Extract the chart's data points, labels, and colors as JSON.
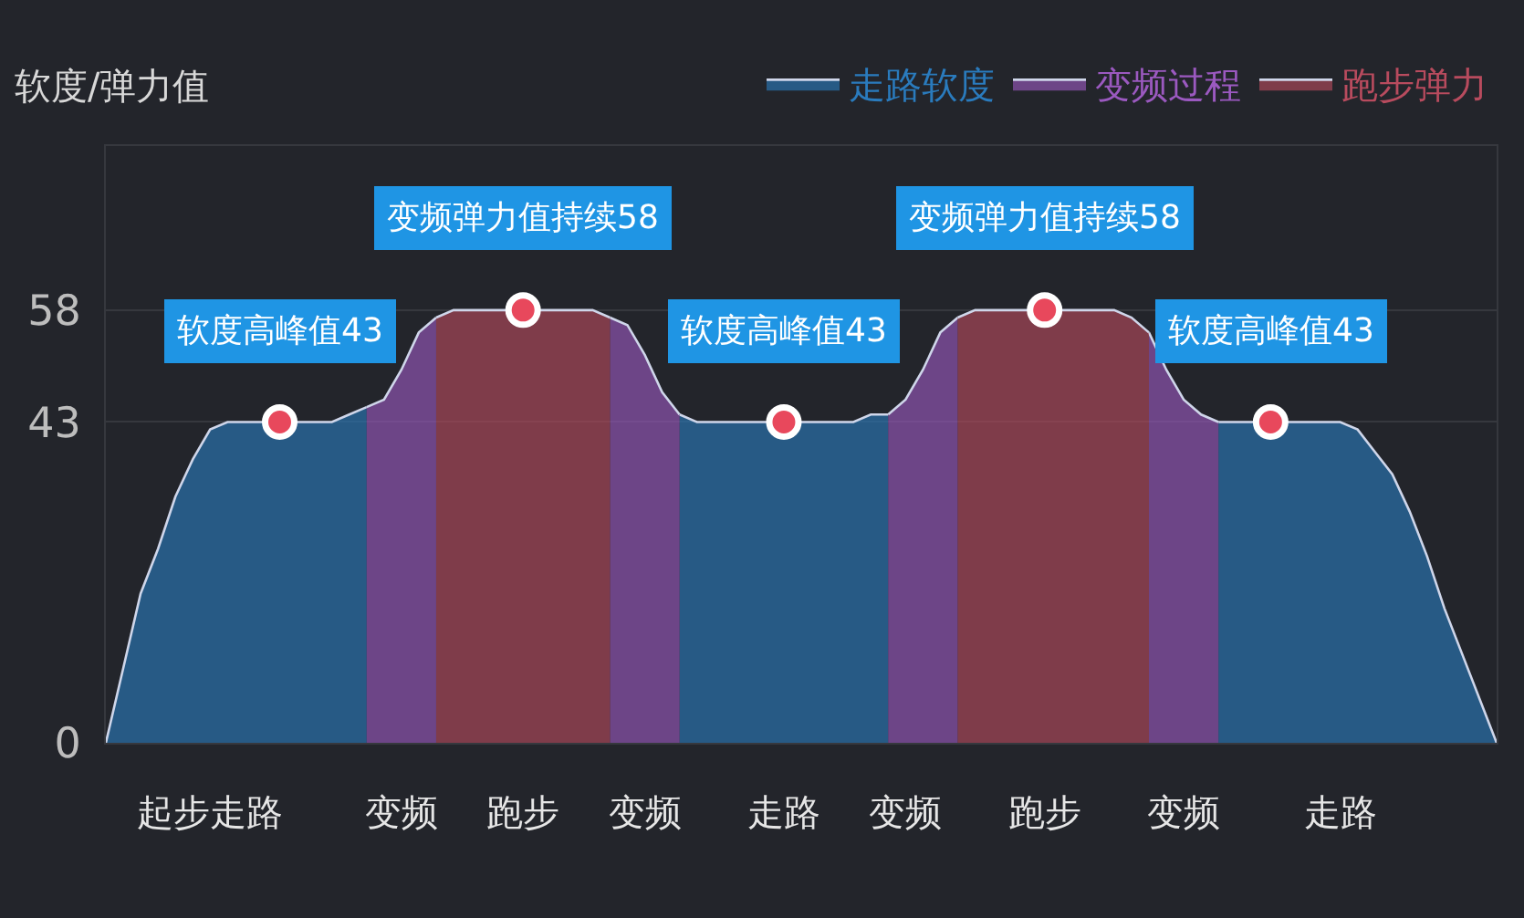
{
  "chart_data": {
    "type": "area",
    "ylabel": "软度/弹力值",
    "categories": [
      null,
      null,
      null,
      null,
      null,
      null,
      "起步走路",
      null,
      null,
      null,
      null,
      null,
      null,
      null,
      null,
      null,
      null,
      "变频",
      null,
      null,
      null,
      null,
      null,
      null,
      "跑步",
      null,
      null,
      null,
      null,
      null,
      null,
      "变频",
      null,
      null,
      null,
      null,
      null,
      null,
      null,
      "走路",
      null,
      null,
      null,
      null,
      null,
      null,
      "变频",
      null,
      null,
      null,
      null,
      null,
      null,
      null,
      "跑步",
      null,
      null,
      null,
      null,
      null,
      null,
      null,
      "变频",
      null,
      null,
      null,
      null,
      null,
      null,
      null,
      null,
      "走路",
      null,
      null,
      null,
      null,
      null,
      null,
      null,
      null,
      null
    ],
    "series": [
      {
        "name": "走路软度",
        "color": "#2a7bbd",
        "values": [
          0,
          10,
          20,
          26,
          33,
          38,
          42,
          43,
          43,
          43,
          43,
          43,
          43,
          43,
          44,
          45,
          null,
          null,
          null,
          null,
          null,
          null,
          null,
          null,
          null,
          null,
          null,
          null,
          null,
          null,
          null,
          null,
          null,
          44,
          43,
          43,
          43,
          43,
          43,
          43,
          43,
          43,
          43,
          43,
          44,
          44,
          null,
          null,
          null,
          null,
          null,
          null,
          null,
          null,
          null,
          null,
          null,
          null,
          null,
          null,
          null,
          null,
          null,
          null,
          43,
          43,
          43,
          43,
          43,
          43,
          43,
          43,
          42,
          39,
          36,
          31,
          25,
          18,
          12,
          6,
          0
        ]
      },
      {
        "name": "变频过程",
        "color": "#9b59c0",
        "values": [
          null,
          null,
          null,
          null,
          null,
          null,
          null,
          null,
          null,
          null,
          null,
          null,
          null,
          null,
          null,
          45,
          46,
          50,
          55,
          57,
          null,
          null,
          null,
          null,
          null,
          null,
          null,
          null,
          null,
          57,
          56,
          52,
          47,
          44,
          null,
          null,
          null,
          null,
          null,
          null,
          null,
          null,
          null,
          null,
          null,
          44,
          46,
          50,
          55,
          57,
          null,
          null,
          null,
          null,
          null,
          null,
          null,
          null,
          null,
          null,
          55,
          50,
          46,
          44,
          43,
          null,
          null,
          null,
          null,
          null,
          null,
          null,
          null,
          null,
          null,
          null,
          null,
          null,
          null,
          null,
          null
        ]
      },
      {
        "name": "跑步弹力",
        "color": "#b84b5e",
        "values": [
          null,
          null,
          null,
          null,
          null,
          null,
          null,
          null,
          null,
          null,
          null,
          null,
          null,
          null,
          null,
          null,
          null,
          null,
          null,
          57,
          58,
          58,
          58,
          58,
          58,
          58,
          58,
          58,
          58,
          57,
          null,
          null,
          null,
          null,
          null,
          null,
          null,
          null,
          null,
          null,
          null,
          null,
          null,
          null,
          null,
          null,
          null,
          null,
          null,
          57,
          58,
          58,
          58,
          58,
          58,
          58,
          58,
          58,
          58,
          57,
          55,
          null,
          null,
          null,
          null,
          null,
          null,
          null,
          null,
          null,
          null,
          null,
          null,
          null,
          null,
          null,
          null,
          null,
          null,
          null,
          null
        ]
      },
      {
        "type": "scatter",
        "color": "#e8485c",
        "marker": "circle",
        "values": [
          null,
          null,
          null,
          null,
          null,
          null,
          null,
          null,
          null,
          null,
          43,
          null,
          null,
          null,
          null,
          null,
          null,
          null,
          null,
          null,
          null,
          null,
          null,
          null,
          58,
          null,
          null,
          null,
          null,
          null,
          null,
          null,
          null,
          null,
          null,
          null,
          null,
          null,
          null,
          43,
          null,
          null,
          null,
          null,
          null,
          null,
          null,
          null,
          null,
          null,
          null,
          null,
          null,
          null,
          58,
          null,
          null,
          null,
          null,
          null,
          null,
          null,
          null,
          null,
          null,
          null,
          null,
          43,
          null,
          null,
          null,
          null,
          null,
          null,
          null,
          null,
          null,
          null,
          null,
          null,
          null
        ]
      }
    ],
    "ylim": [
      0,
      80
    ],
    "yticks": [
      0,
      43,
      58
    ],
    "grid": "y",
    "legend": "top right",
    "annotations": [
      {
        "text": "软度高峰值43",
        "y": 43
      },
      {
        "text": "变频弹力值持续58",
        "y": 58
      },
      {
        "text": "软度高峰值43",
        "y": 43
      },
      {
        "text": "变频弹力值持续58",
        "y": 58
      },
      {
        "text": "软度高峰值43",
        "y": 43
      }
    ]
  }
}
